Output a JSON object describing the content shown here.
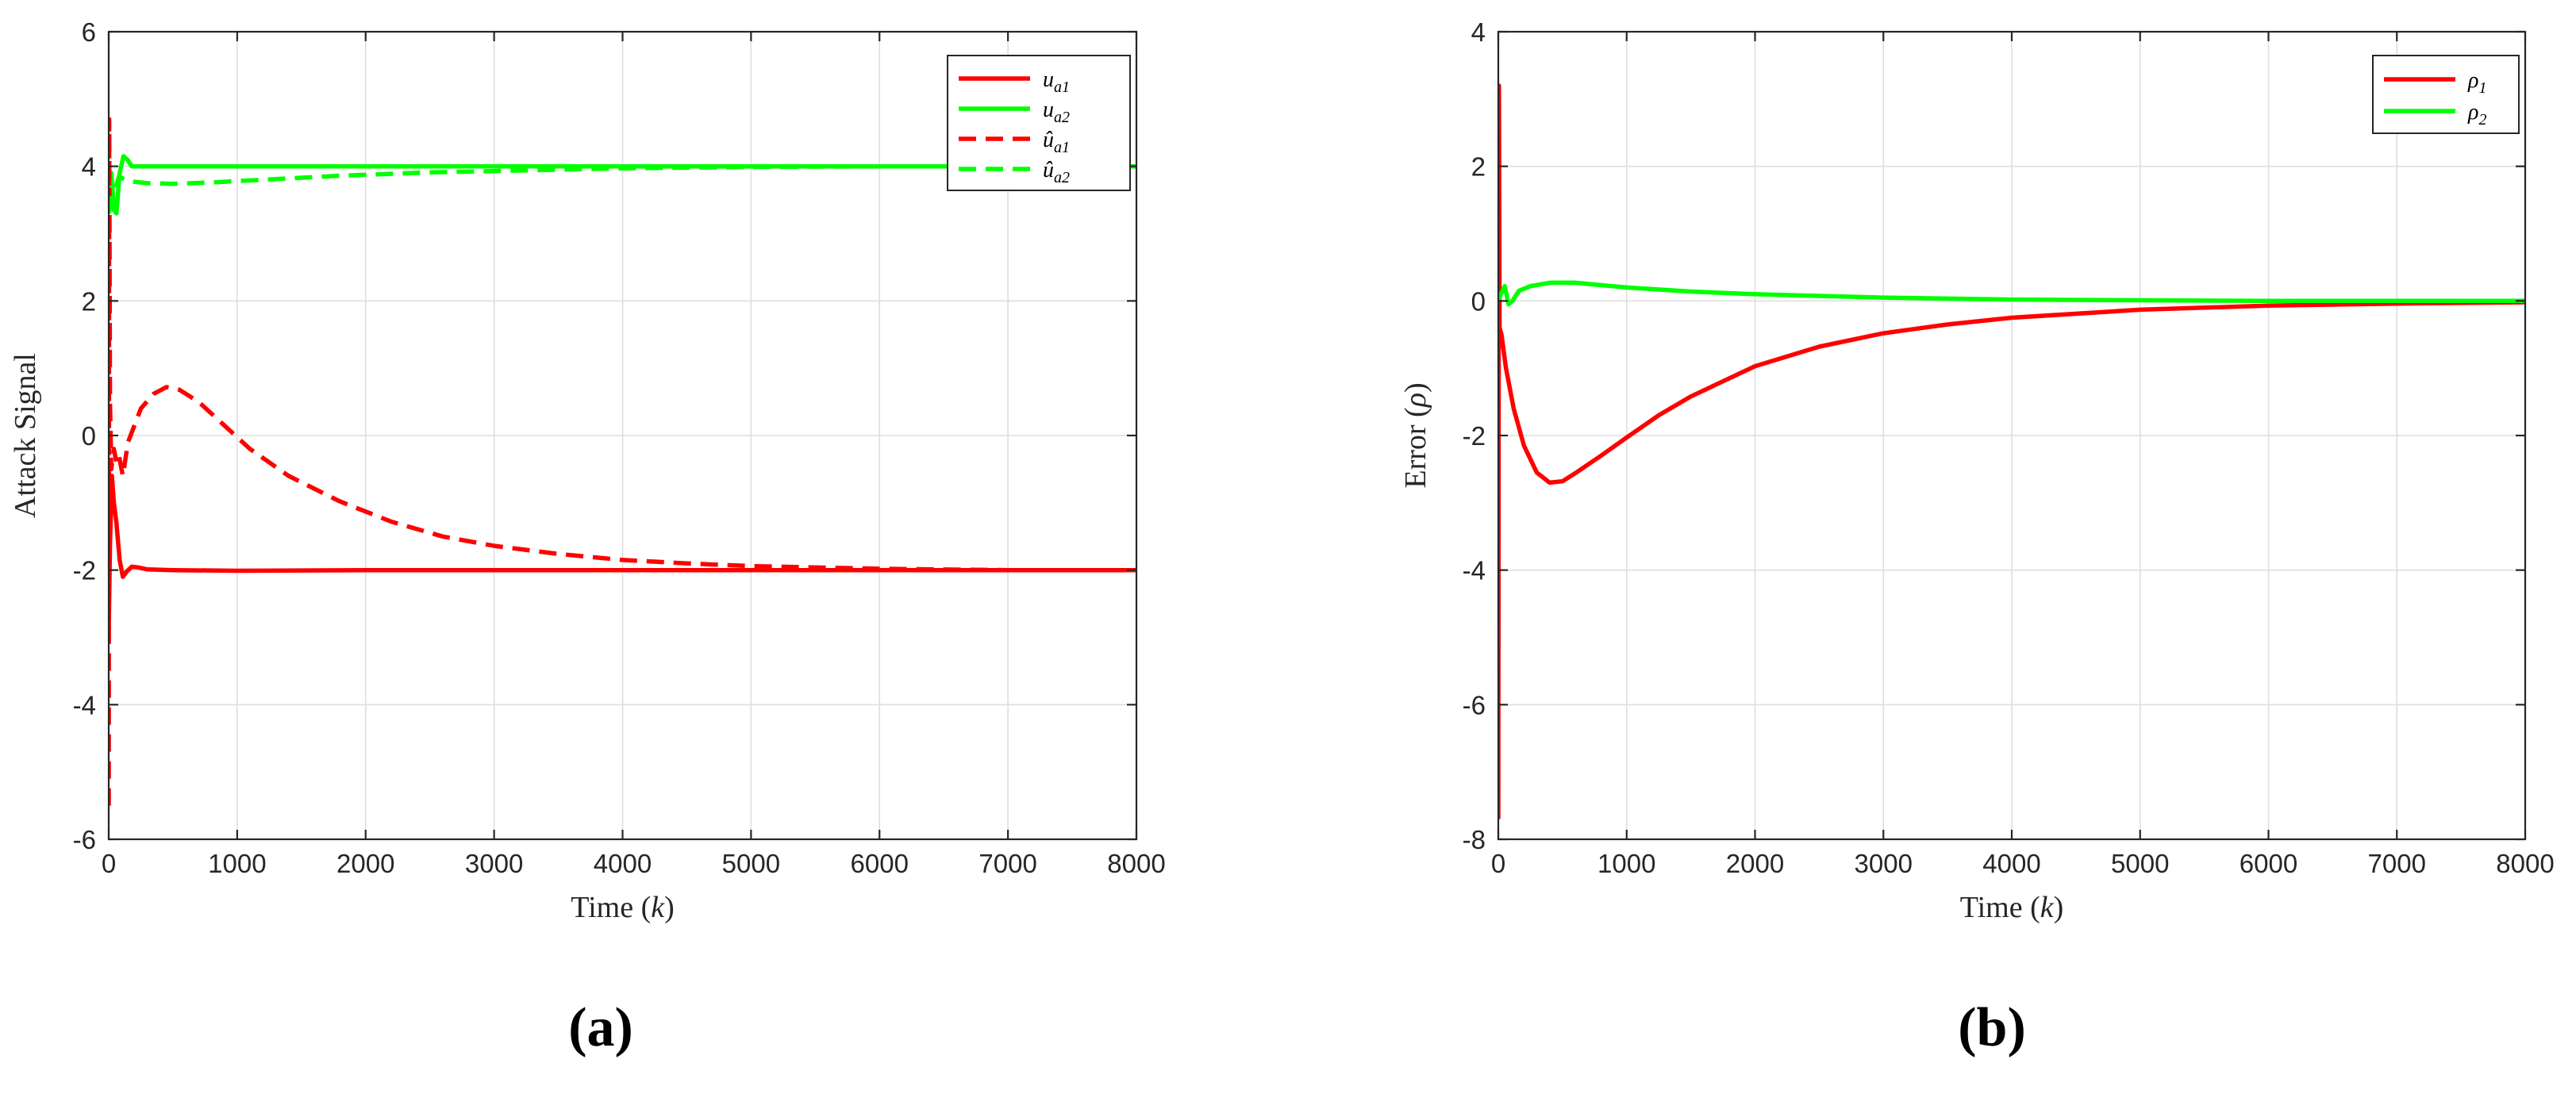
{
  "chart_data": [
    {
      "type": "line",
      "panel_label": "(a)",
      "xlabel": "Time (k)",
      "ylabel": "Attack Signal",
      "xlim": [
        0,
        8000
      ],
      "ylim": [
        -6,
        6
      ],
      "xticks": [
        0,
        1000,
        2000,
        3000,
        4000,
        5000,
        6000,
        7000,
        8000
      ],
      "yticks": [
        -6,
        -4,
        -2,
        0,
        2,
        4,
        6
      ],
      "grid": true,
      "legend_position": "top-right",
      "series": [
        {
          "name": "u_a1",
          "legend_base": "u",
          "legend_sub": "a1",
          "legend_hat": false,
          "color": "#ff0000",
          "dash": "solid",
          "points": [
            [
              0,
              -2.9
            ],
            [
              10,
              -1.6
            ],
            [
              25,
              -0.6
            ],
            [
              40,
              -1.0
            ],
            [
              60,
              -1.3
            ],
            [
              85,
              -1.85
            ],
            [
              110,
              -2.1
            ],
            [
              140,
              -2.02
            ],
            [
              180,
              -1.95
            ],
            [
              230,
              -1.96
            ],
            [
              300,
              -1.99
            ],
            [
              500,
              -2.0
            ],
            [
              1000,
              -2.01
            ],
            [
              2000,
              -2.0
            ],
            [
              4000,
              -2.0
            ],
            [
              6000,
              -2.0
            ],
            [
              8000,
              -2.0
            ]
          ]
        },
        {
          "name": "u_a2",
          "legend_base": "u",
          "legend_sub": "a2",
          "legend_hat": false,
          "color": "#00ff00",
          "dash": "solid",
          "points": [
            [
              0,
              3.5
            ],
            [
              20,
              3.9
            ],
            [
              40,
              3.35
            ],
            [
              60,
              3.3
            ],
            [
              85,
              3.9
            ],
            [
              115,
              4.15
            ],
            [
              145,
              4.1
            ],
            [
              180,
              4.0
            ],
            [
              250,
              4.0
            ],
            [
              500,
              4.0
            ],
            [
              1000,
              4.0
            ],
            [
              3000,
              4.0
            ],
            [
              5000,
              4.0
            ],
            [
              8000,
              4.0
            ]
          ]
        },
        {
          "name": "û_a1",
          "legend_base": "u",
          "legend_sub": "a1",
          "legend_hat": true,
          "color": "#ff0000",
          "dash": "dashed",
          "points": [
            [
              0,
              -5.5
            ],
            [
              4,
              4.7
            ],
            [
              10,
              0.5
            ],
            [
              20,
              -0.5
            ],
            [
              40,
              -0.2
            ],
            [
              60,
              -0.4
            ],
            [
              80,
              -0.3
            ],
            [
              110,
              -0.6
            ],
            [
              150,
              -0.1
            ],
            [
              250,
              0.4
            ],
            [
              350,
              0.62
            ],
            [
              450,
              0.72
            ],
            [
              550,
              0.68
            ],
            [
              700,
              0.5
            ],
            [
              900,
              0.15
            ],
            [
              1100,
              -0.2
            ],
            [
              1400,
              -0.6
            ],
            [
              1800,
              -0.98
            ],
            [
              2200,
              -1.28
            ],
            [
              2600,
              -1.5
            ],
            [
              3000,
              -1.64
            ],
            [
              3500,
              -1.76
            ],
            [
              4000,
              -1.85
            ],
            [
              4500,
              -1.9
            ],
            [
              5000,
              -1.94
            ],
            [
              6000,
              -1.98
            ],
            [
              7000,
              -2.0
            ],
            [
              8000,
              -2.0
            ]
          ]
        },
        {
          "name": "û_a2",
          "legend_base": "u",
          "legend_sub": "a2",
          "legend_hat": true,
          "color": "#00ff00",
          "dash": "dashed",
          "points": [
            [
              0,
              3.3
            ],
            [
              15,
              3.5
            ],
            [
              40,
              3.6
            ],
            [
              80,
              3.85
            ],
            [
              150,
              3.78
            ],
            [
              300,
              3.75
            ],
            [
              500,
              3.74
            ],
            [
              800,
              3.76
            ],
            [
              1200,
              3.8
            ],
            [
              1800,
              3.86
            ],
            [
              2500,
              3.91
            ],
            [
              3000,
              3.93
            ],
            [
              4000,
              3.97
            ],
            [
              5000,
              3.99
            ],
            [
              6000,
              4.0
            ],
            [
              8000,
              4.0
            ]
          ]
        }
      ]
    },
    {
      "type": "line",
      "panel_label": "(b)",
      "xlabel": "Time (k)",
      "ylabel": "Error (ρ)",
      "xlim": [
        0,
        8000
      ],
      "ylim": [
        -8,
        4
      ],
      "xticks": [
        0,
        1000,
        2000,
        3000,
        4000,
        5000,
        6000,
        7000,
        8000
      ],
      "yticks": [
        -8,
        -6,
        -4,
        -2,
        0,
        2,
        4
      ],
      "grid": true,
      "legend_position": "top-right",
      "series": [
        {
          "name": "ρ1",
          "legend_base": "ρ",
          "legend_sub": "1",
          "legend_hat": false,
          "color": "#ff0000",
          "dash": "solid",
          "points": [
            [
              0,
              -7.7
            ],
            [
              5,
              3.2
            ],
            [
              10,
              -0.4
            ],
            [
              25,
              -0.5
            ],
            [
              60,
              -1.0
            ],
            [
              120,
              -1.6
            ],
            [
              200,
              -2.15
            ],
            [
              300,
              -2.55
            ],
            [
              400,
              -2.7
            ],
            [
              500,
              -2.68
            ],
            [
              600,
              -2.56
            ],
            [
              800,
              -2.3
            ],
            [
              1000,
              -2.03
            ],
            [
              1250,
              -1.7
            ],
            [
              1500,
              -1.42
            ],
            [
              2000,
              -0.97
            ],
            [
              2500,
              -0.68
            ],
            [
              3000,
              -0.48
            ],
            [
              3500,
              -0.35
            ],
            [
              4000,
              -0.25
            ],
            [
              5000,
              -0.13
            ],
            [
              6000,
              -0.07
            ],
            [
              7000,
              -0.04
            ],
            [
              8000,
              -0.02
            ]
          ]
        },
        {
          "name": "ρ2",
          "legend_base": "ρ",
          "legend_sub": "2",
          "legend_hat": false,
          "color": "#00ff00",
          "dash": "solid",
          "points": [
            [
              0,
              0.0
            ],
            [
              20,
              0.1
            ],
            [
              50,
              0.22
            ],
            [
              80,
              -0.05
            ],
            [
              110,
              0.0
            ],
            [
              160,
              0.15
            ],
            [
              250,
              0.22
            ],
            [
              400,
              0.27
            ],
            [
              600,
              0.27
            ],
            [
              1000,
              0.2
            ],
            [
              1500,
              0.14
            ],
            [
              2000,
              0.1
            ],
            [
              3000,
              0.05
            ],
            [
              4000,
              0.02
            ],
            [
              5000,
              0.01
            ],
            [
              6000,
              0.0
            ],
            [
              8000,
              0.0
            ]
          ]
        }
      ]
    }
  ]
}
